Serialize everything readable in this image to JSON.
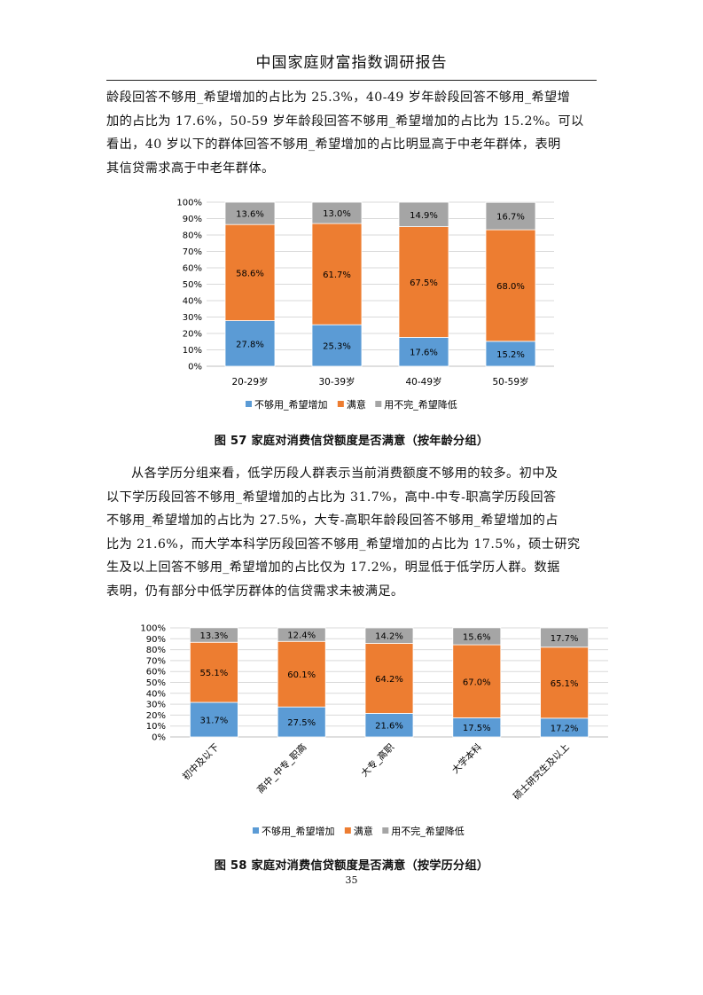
{
  "header": {
    "title": "中国家庭财富指数调研报告"
  },
  "paragraph1": {
    "lines": [
      "龄段回答不够用_希望增加的占比为 25.3%，40-49 岁年龄段回答不够用_希望增",
      "加的占比为 17.6%，50-59 岁年龄段回答不够用_希望增加的占比为 15.2%。可以",
      "看出，40 岁以下的群体回答不够用_希望增加的占比明显高于中老年群体，表明",
      "其信贷需求高于中老年群体。"
    ]
  },
  "figure57": {
    "caption": "图 57 家庭对消费信贷额度是否满意（按年龄分组）"
  },
  "paragraph2": {
    "lines": [
      "从各学历分组来看，低学历段人群表示当前消费额度不够用的较多。初中及",
      "以下学历段回答不够用_希望增加的占比为 31.7%，高中-中专-职高学历段回答",
      "不够用_希望增加的占比为 27.5%，大专-高职年龄段回答不够用_希望增加的占",
      "比为 21.6%，而大学本科学历段回答不够用_希望增加的占比为 17.5%，硕士研究",
      "生及以上回答不够用_希望增加的占比仅为 17.2%，明显低于低学历人群。数据",
      "表明，仍有部分中低学历群体的信贷需求未被满足。"
    ]
  },
  "figure58": {
    "caption": "图 58 家庭对消费信贷额度是否满意（按学历分组）"
  },
  "page_number": "35",
  "colors": {
    "series1": "#5B9BD5",
    "series2": "#ED7D31",
    "series3": "#A5A5A5",
    "grid": "#D9D9D9"
  },
  "chart_data": [
    {
      "type": "bar",
      "stacked": "percent",
      "categories": [
        "20-29岁",
        "30-39岁",
        "40-49岁",
        "50-59岁"
      ],
      "series": [
        {
          "name": "不够用_希望增加",
          "values": [
            27.8,
            25.3,
            17.6,
            15.2
          ]
        },
        {
          "name": "满意",
          "values": [
            58.6,
            61.7,
            67.5,
            68.0
          ]
        },
        {
          "name": "用不完_希望降低",
          "values": [
            13.6,
            13.0,
            14.9,
            16.7
          ]
        }
      ],
      "yticks": [
        "0%",
        "10%",
        "20%",
        "30%",
        "40%",
        "50%",
        "60%",
        "70%",
        "80%",
        "90%",
        "100%"
      ],
      "ylim": [
        0,
        100
      ],
      "grid": true,
      "legend": "bottom"
    },
    {
      "type": "bar",
      "stacked": "percent",
      "categories": [
        "初中及以下",
        "高中_中专_职高",
        "大专_高职",
        "大学本科",
        "硕士研究生及以上"
      ],
      "series": [
        {
          "name": "不够用_希望增加",
          "values": [
            31.7,
            27.5,
            21.6,
            17.5,
            17.2
          ]
        },
        {
          "name": "满意",
          "values": [
            55.1,
            60.1,
            64.2,
            67.0,
            65.1
          ]
        },
        {
          "name": "用不完_希望降低",
          "values": [
            13.3,
            12.4,
            14.2,
            15.6,
            17.7
          ]
        }
      ],
      "yticks": [
        "0%",
        "10%",
        "20%",
        "30%",
        "40%",
        "50%",
        "60%",
        "70%",
        "80%",
        "90%",
        "100%"
      ],
      "ylim": [
        0,
        100
      ],
      "grid": true,
      "legend": "bottom"
    }
  ]
}
